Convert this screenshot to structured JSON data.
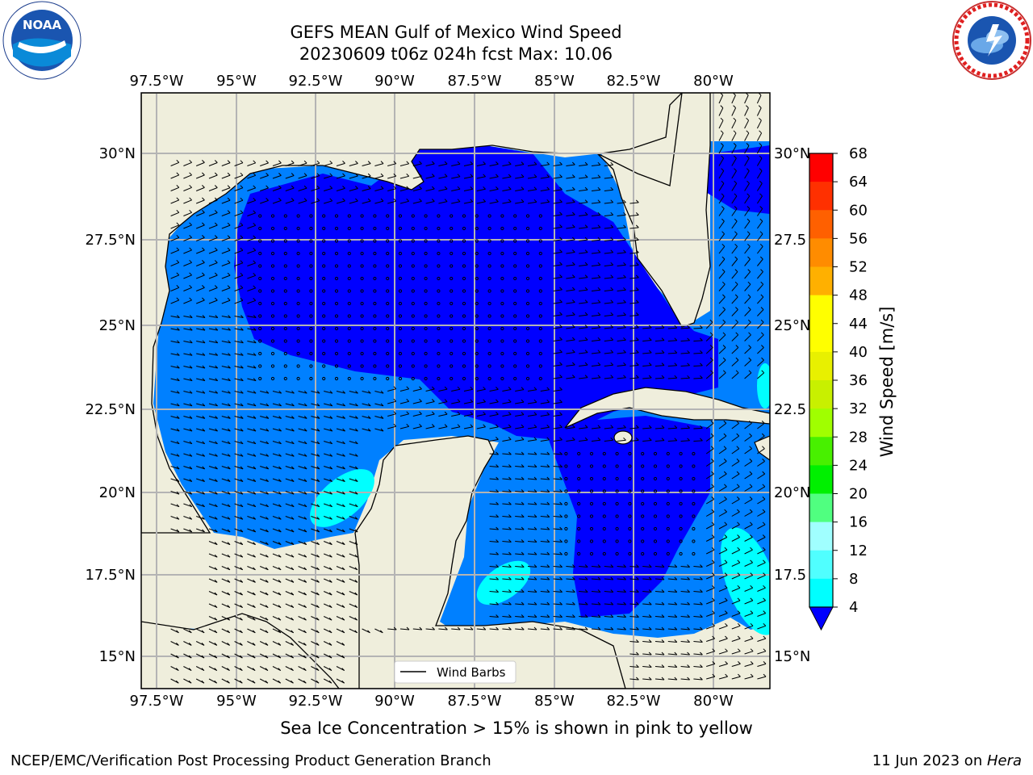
{
  "header": {
    "title_line1": "GEFS MEAN Gulf of Mexico Wind Speed",
    "title_line2": "20230609 t06z 024h fcst   Max: 10.06"
  },
  "logos": {
    "left": {
      "name": "noaa-logo",
      "text": "NOAA",
      "ring_text": "NATIONAL OCEANIC AND ATMOSPHERIC ADMINISTRATION · U.S. DEPARTMENT OF COMMERCE"
    },
    "right": {
      "name": "nws-logo",
      "ring_text": "NATIONAL WEATHER SERVICE"
    }
  },
  "map": {
    "lon_ticks": [
      "97.5°W",
      "95°W",
      "92.5°W",
      "90°W",
      "87.5°W",
      "85°W",
      "82.5°W",
      "80°W"
    ],
    "lat_ticks_left": [
      "30°N",
      "27.5°N",
      "25°N",
      "22.5°N",
      "20°N",
      "17.5°N",
      "15°N"
    ],
    "lat_ticks_right": [
      "30°N",
      "27.5",
      "25°N",
      "22.5",
      "20°N",
      "17.5",
      "15°N"
    ],
    "lon_range": [
      -98,
      -78
    ],
    "lat_range": [
      14,
      32
    ],
    "legend_label": "Wind Barbs",
    "colors": {
      "land": "#efeedc",
      "ocean_low": "#0000ff",
      "ocean_mid": "#0080ff",
      "ocean_high": "#00ffff",
      "grid": "#b4b4b4"
    }
  },
  "colorbar": {
    "label": "Wind Speed [m/s]",
    "levels": [
      "68",
      "64",
      "60",
      "56",
      "52",
      "48",
      "44",
      "40",
      "36",
      "32",
      "28",
      "24",
      "20",
      "16",
      "12",
      "8",
      "4"
    ],
    "colors": [
      "#ff0000",
      "#ff3000",
      "#ff6000",
      "#ff8c00",
      "#ffb000",
      "#ffff00",
      "#ffff00",
      "#e8f000",
      "#c8f000",
      "#a0ff00",
      "#48f000",
      "#00f000",
      "#50ff80",
      "#a0ffff",
      "#50ffff",
      "#00ffff",
      "#0080ff"
    ],
    "extend_color": "#0000ff"
  },
  "footer": {
    "sea_ice_note": "Sea Ice Concentration > 15% is shown in pink to yellow",
    "credit": "NCEP/EMC/Verification Post Processing Product Generation Branch",
    "date_prefix": "11 Jun 2023 on ",
    "machine": "Hera"
  }
}
